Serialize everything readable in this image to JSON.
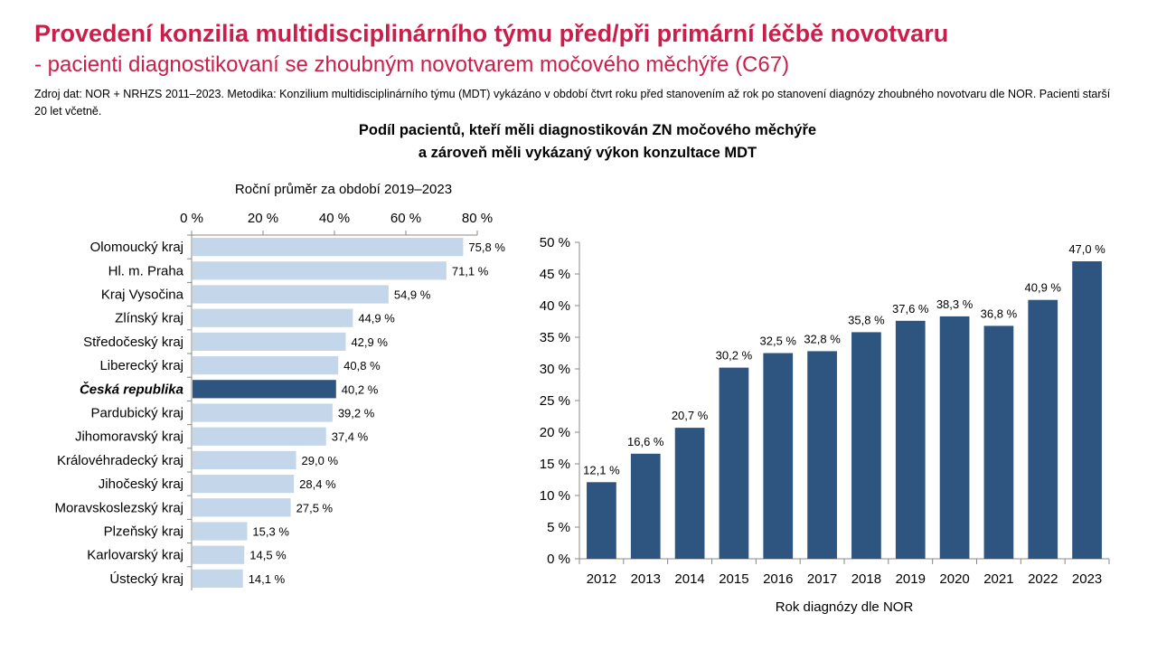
{
  "header": {
    "title": "Provedení konzilia multidisciplinárního týmu před/při primární léčbě novotvaru",
    "subtitle": "- pacienti diagnostikovaní se zhoubným novotvarem močového měchýře (C67)",
    "source": "Zdroj dat: NOR + NRHZS 2011–2023. Metodika: Konzilium multidisciplinárního týmu (MDT) vykázáno v období čtvrt roku před stanovením až rok po stanovení diagnózy zhoubného novotvaru dle NOR. Pacienti starší 20 let včetně.",
    "chart_title_line1": "Podíl pacientů, kteří měli diagnostikován ZN močového měchýře",
    "chart_title_line2": "a zároveň měli vykázaný výkon konzultace MDT"
  },
  "colors": {
    "title": "#cc1e4a",
    "bar_light": "#c3d6ea",
    "bar_dark": "#2e5580"
  },
  "chart_data": [
    {
      "type": "bar",
      "orientation": "horizontal",
      "title": "Roční průměr za období 2019–2023",
      "categories": [
        "Olomoucký kraj",
        "Hl. m. Praha",
        "Kraj Vysočina",
        "Zlínský kraj",
        "Středočeský kraj",
        "Liberecký kraj",
        "Česká republika",
        "Pardubický kraj",
        "Jihomoravský kraj",
        "Královéhradecký kraj",
        "Jihočeský kraj",
        "Moravskoslezský kraj",
        "Plzeňský kraj",
        "Karlovarský kraj",
        "Ústecký kraj"
      ],
      "values": [
        75.8,
        71.1,
        54.9,
        44.9,
        42.9,
        40.8,
        40.2,
        39.2,
        37.4,
        29.0,
        28.4,
        27.5,
        15.3,
        14.5,
        14.1
      ],
      "value_labels": [
        "75,8 %",
        "71,1 %",
        "54,9 %",
        "44,9 %",
        "42,9 %",
        "40,8 %",
        "40,2 %",
        "39,2 %",
        "37,4 %",
        "29,0 %",
        "28,4 %",
        "27,5 %",
        "15,3 %",
        "14,5 %",
        "14,1 %"
      ],
      "highlight": "Česká republika",
      "xlim": [
        0,
        80
      ],
      "xticks": [
        0,
        20,
        40,
        60,
        80
      ],
      "xtick_labels": [
        "0 %",
        "20 %",
        "40 %",
        "60 %",
        "80 %"
      ],
      "axis_position": "top"
    },
    {
      "type": "bar",
      "xlabel": "Rok diagnózy dle NOR",
      "categories": [
        "2012",
        "2013",
        "2014",
        "2015",
        "2016",
        "2017",
        "2018",
        "2019",
        "2020",
        "2021",
        "2022",
        "2023"
      ],
      "values": [
        12.1,
        16.6,
        20.7,
        30.2,
        32.5,
        32.8,
        35.8,
        37.6,
        38.3,
        36.8,
        40.9,
        47.0
      ],
      "value_labels": [
        "12,1 %",
        "16,6 %",
        "20,7 %",
        "30,2 %",
        "32,5 %",
        "32,8 %",
        "35,8 %",
        "37,6 %",
        "38,3 %",
        "36,8 %",
        "40,9 %",
        "47,0 %"
      ],
      "ylim": [
        0,
        50
      ],
      "yticks": [
        0,
        5,
        10,
        15,
        20,
        25,
        30,
        35,
        40,
        45,
        50
      ],
      "ytick_labels": [
        "0 %",
        "5 %",
        "10 %",
        "15 %",
        "20 %",
        "25 %",
        "30 %",
        "35 %",
        "40 %",
        "45 %",
        "50 %"
      ]
    }
  ]
}
